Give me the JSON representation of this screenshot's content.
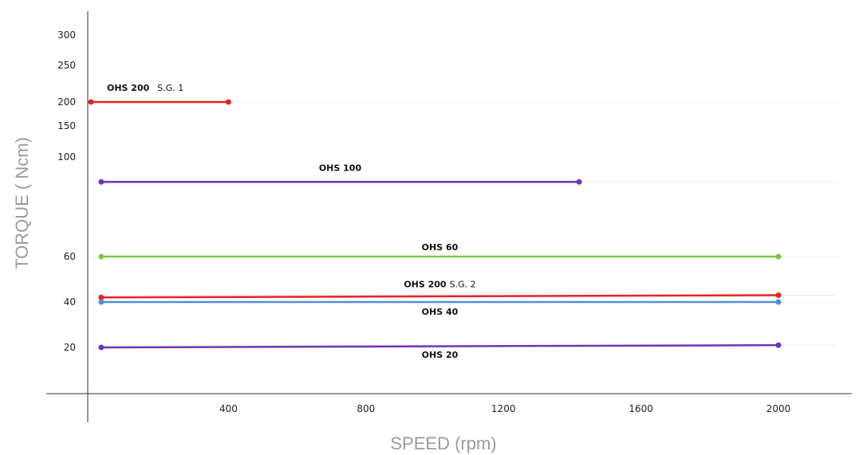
{
  "chart_data": {
    "type": "line",
    "title": "",
    "xlabel": "SPEED (rpm)",
    "ylabel": "TORQUE ( Ncm)",
    "x_ticks": [
      "400",
      "800",
      "1200",
      "1600",
      "2000"
    ],
    "y_ticks": [
      "20",
      "40",
      "60",
      "100",
      "150",
      "200",
      "250",
      "300"
    ],
    "grid": "horizontal lines at series levels",
    "series": [
      {
        "name": "OHS 200",
        "name_extra": "S.G. 1",
        "color": "#e8231f",
        "x": [
          0,
          400
        ],
        "y": [
          200,
          200
        ]
      },
      {
        "name": "OHS 100",
        "name_extra": "",
        "color": "#6f35b8",
        "x": [
          30,
          1420
        ],
        "y": [
          90,
          90
        ]
      },
      {
        "name": "OHS 60",
        "name_extra": "",
        "color": "#7cc94a",
        "x": [
          30,
          2000
        ],
        "y": [
          60,
          60
        ]
      },
      {
        "name": "OHS 200",
        "name_extra": "S.G. 2",
        "color": "#e8231f",
        "x": [
          30,
          2000
        ],
        "y": [
          42,
          43
        ]
      },
      {
        "name": "OHS 40",
        "name_extra": "",
        "color": "#4f90d8",
        "x": [
          30,
          2000
        ],
        "y": [
          40,
          40
        ]
      },
      {
        "name": "OHS 20",
        "name_extra": "",
        "color": "#6f35b8",
        "x": [
          30,
          2000
        ],
        "y": [
          20,
          21
        ]
      }
    ]
  }
}
